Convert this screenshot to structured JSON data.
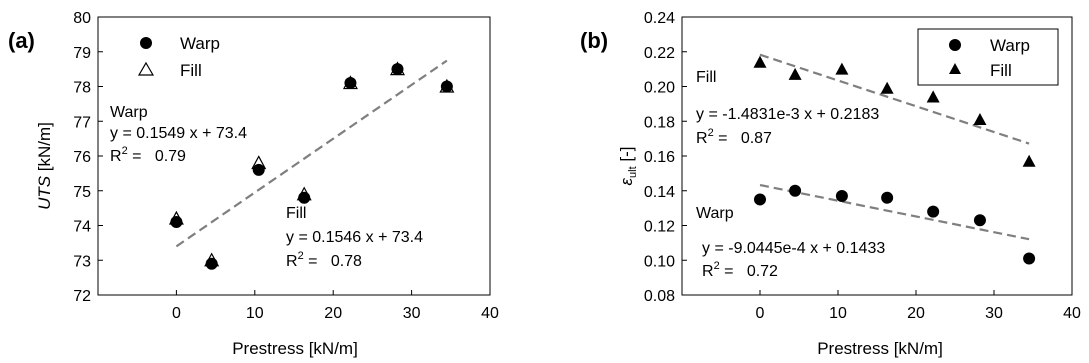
{
  "chart_data": [
    {
      "type": "scatter",
      "panel_label": "(a)",
      "xlabel": "Prestress [kN/m]",
      "ylabel_italic": "UTS",
      "ylabel_unit": " [kN/m]",
      "xlim": [
        -10,
        40
      ],
      "ylim": [
        72,
        80
      ],
      "xticks": [
        "0",
        "10",
        "20",
        "30",
        "40"
      ],
      "yticks": [
        "72",
        "73",
        "74",
        "75",
        "76",
        "77",
        "78",
        "79",
        "80"
      ],
      "grid": false,
      "legend_position": "top-left",
      "series": [
        {
          "name": "Warp",
          "marker": "circle",
          "fill": "#000000",
          "x": [
            0,
            4.5,
            10.5,
            16.3,
            22.2,
            28.2,
            34.5
          ],
          "y": [
            74.1,
            72.9,
            75.6,
            74.8,
            78.1,
            78.5,
            78.0
          ]
        },
        {
          "name": "Fill",
          "marker": "triangle",
          "fill": "none",
          "x": [
            0,
            4.5,
            10.5,
            16.3,
            22.2,
            28.2,
            34.5
          ],
          "y": [
            74.2,
            73.0,
            75.8,
            74.9,
            78.1,
            78.5,
            78.0
          ]
        }
      ],
      "trendline": {
        "slope": 0.1549,
        "intercept": 73.4,
        "x_range": [
          0,
          34.5
        ],
        "color": "#7f7f7f",
        "dash": true
      },
      "annotations": {
        "warp_title": "Warp",
        "warp_eq": "y = 0.1549 x + 73.4",
        "warp_r2_value": "0.79",
        "fill_title": "Fill",
        "fill_eq": "y = 0.1546 x + 73.4",
        "fill_r2_value": "0.78",
        "r2_prefix": "R",
        "r2_sup": "2",
        "r2_eq": " =   "
      }
    },
    {
      "type": "scatter",
      "panel_label": "(b)",
      "xlabel": "Prestress [kN/m]",
      "ylabel_symbol": "ε",
      "ylabel_sub": "ult",
      "ylabel_unit": " [-]",
      "xlim": [
        -10,
        40
      ],
      "ylim": [
        0.08,
        0.24
      ],
      "xticks": [
        "0",
        "10",
        "20",
        "30",
        "40"
      ],
      "yticks": [
        "0.08",
        "0.10",
        "0.12",
        "0.14",
        "0.16",
        "0.18",
        "0.20",
        "0.22",
        "0.24"
      ],
      "grid": false,
      "legend_position": "top-right",
      "series": [
        {
          "name": "Warp",
          "marker": "circle",
          "fill": "#000000",
          "x": [
            0,
            4.5,
            10.5,
            16.3,
            22.2,
            28.2,
            34.5
          ],
          "y": [
            0.135,
            0.14,
            0.137,
            0.136,
            0.128,
            0.123,
            0.101
          ]
        },
        {
          "name": "Fill",
          "marker": "triangle",
          "fill": "#000000",
          "x": [
            0,
            4.5,
            10.5,
            16.3,
            22.2,
            28.2,
            34.5
          ],
          "y": [
            0.214,
            0.207,
            0.21,
            0.199,
            0.194,
            0.181,
            0.157
          ]
        }
      ],
      "trendlines": [
        {
          "slope": -0.0014831,
          "intercept": 0.2183,
          "x_range": [
            0,
            34.5
          ],
          "color": "#7f7f7f",
          "dash": true
        },
        {
          "slope": -0.00090445,
          "intercept": 0.1433,
          "x_range": [
            0,
            34.5
          ],
          "color": "#7f7f7f",
          "dash": true
        }
      ],
      "annotations": {
        "fill_title": "Fill",
        "fill_eq": "y = -1.4831e-3 x + 0.2183",
        "fill_r2_value": "0.87",
        "warp_title": "Warp",
        "warp_eq": "y = -9.0445e-4 x + 0.1433",
        "warp_r2_value": "0.72",
        "r2_prefix": "R",
        "r2_sup": "2",
        "r2_eq": " =   "
      }
    }
  ]
}
